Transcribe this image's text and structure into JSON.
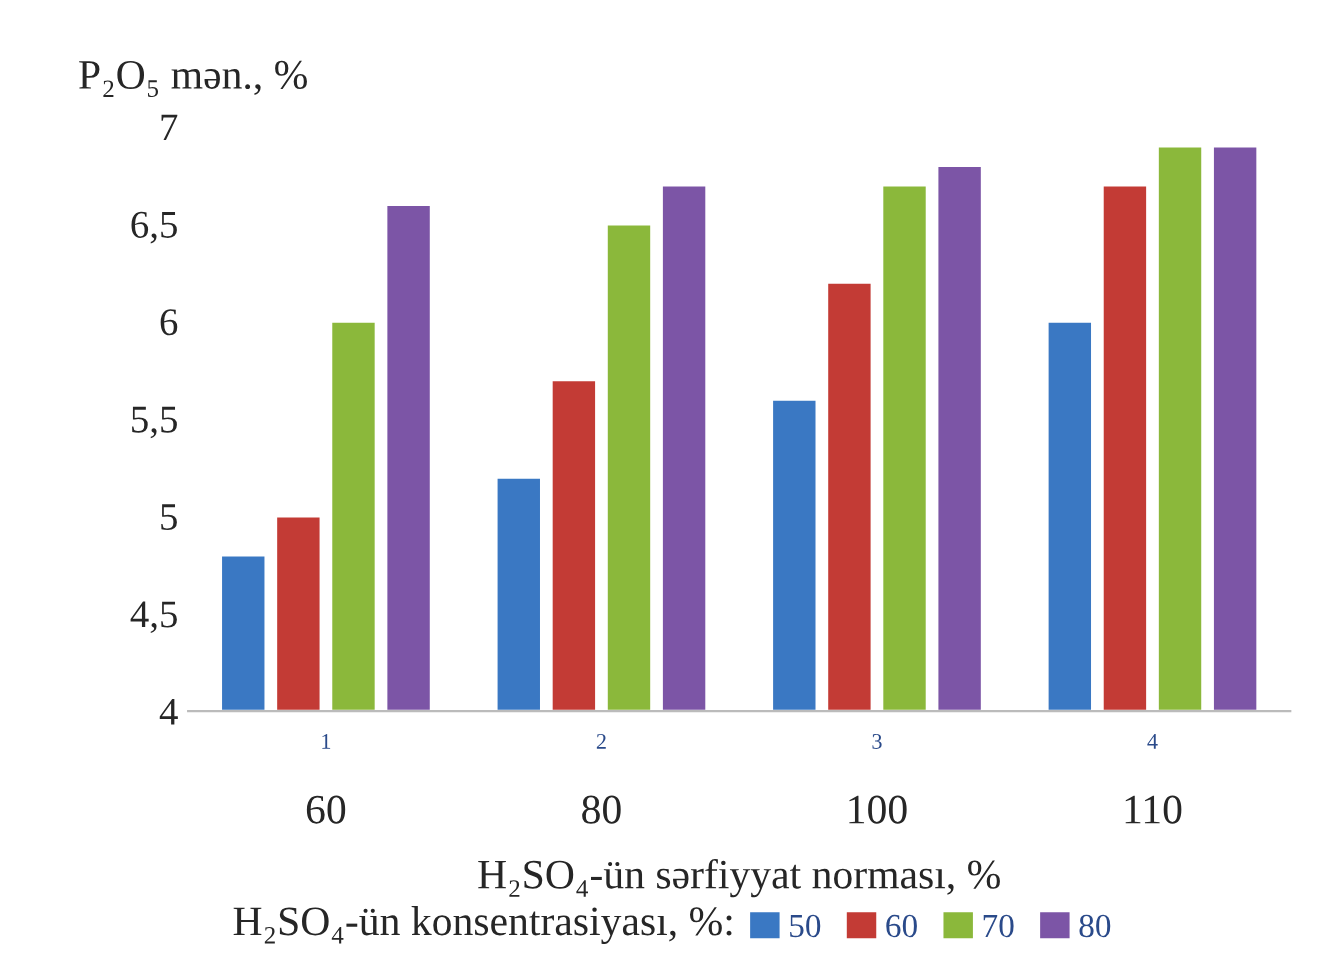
{
  "chart_data": {
    "type": "bar",
    "ylabel": "P₂O₅ mən., %",
    "xlabel": "H₂SO₄-ün sərfiyyat norması, %",
    "legend_title": "H₂SO₄-ün konsentrasiyası, %:",
    "categories": [
      "1",
      "2",
      "3",
      "4"
    ],
    "series": [
      {
        "name": "50",
        "color": "#3a78c3",
        "values": [
          4.8,
          5.2,
          5.6,
          6.0
        ]
      },
      {
        "name": "60",
        "color": "#c33b35",
        "values": [
          5.0,
          5.7,
          6.2,
          6.7
        ]
      },
      {
        "name": "70",
        "color": "#8bb83b",
        "values": [
          6.0,
          6.5,
          6.7,
          6.9
        ]
      },
      {
        "name": "80",
        "color": "#7c55a6",
        "values": [
          6.6,
          6.7,
          6.8,
          6.9
        ]
      }
    ],
    "ylim": [
      4,
      7
    ],
    "yticks": [
      4,
      {
        "value": 4.5,
        "label": "4,5"
      },
      5,
      {
        "value": 5.5,
        "label": "5,5"
      },
      6,
      {
        "value": 6.5,
        "label": "6,5"
      },
      7
    ],
    "annotations": [
      "60",
      "80",
      "100",
      "110"
    ],
    "grid": false,
    "legend": "bottom"
  }
}
